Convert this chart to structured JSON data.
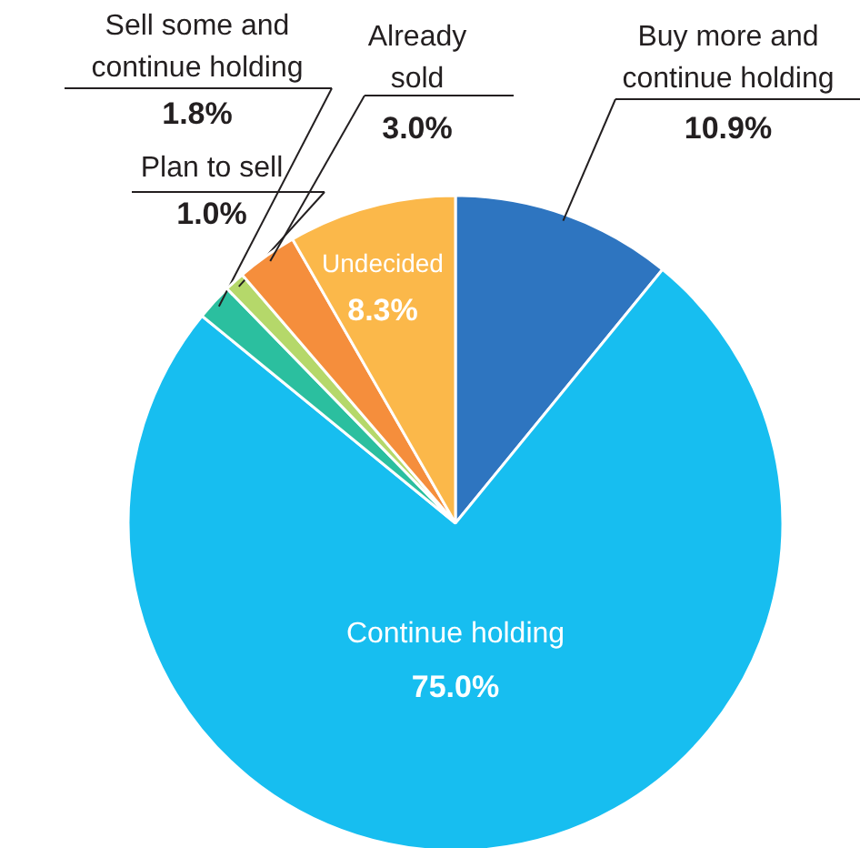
{
  "chart_data": {
    "type": "pie",
    "categories": [
      "Buy more and\ncontinue holding",
      "Continue holding",
      "Sell some and\ncontinue holding",
      "Plan to sell",
      "Already\nsold",
      "Undecided"
    ],
    "values": [
      10.9,
      75.0,
      1.8,
      1.0,
      3.0,
      8.3
    ],
    "value_labels": [
      "10.9%",
      "75.0%",
      "1.8%",
      "1.0%",
      "3.0%",
      "8.3%"
    ],
    "colors": [
      "#2e75c0",
      "#17bef0",
      "#2bbf9f",
      "#b5d86a",
      "#f58e3c",
      "#fbb84a"
    ],
    "legend": false
  }
}
